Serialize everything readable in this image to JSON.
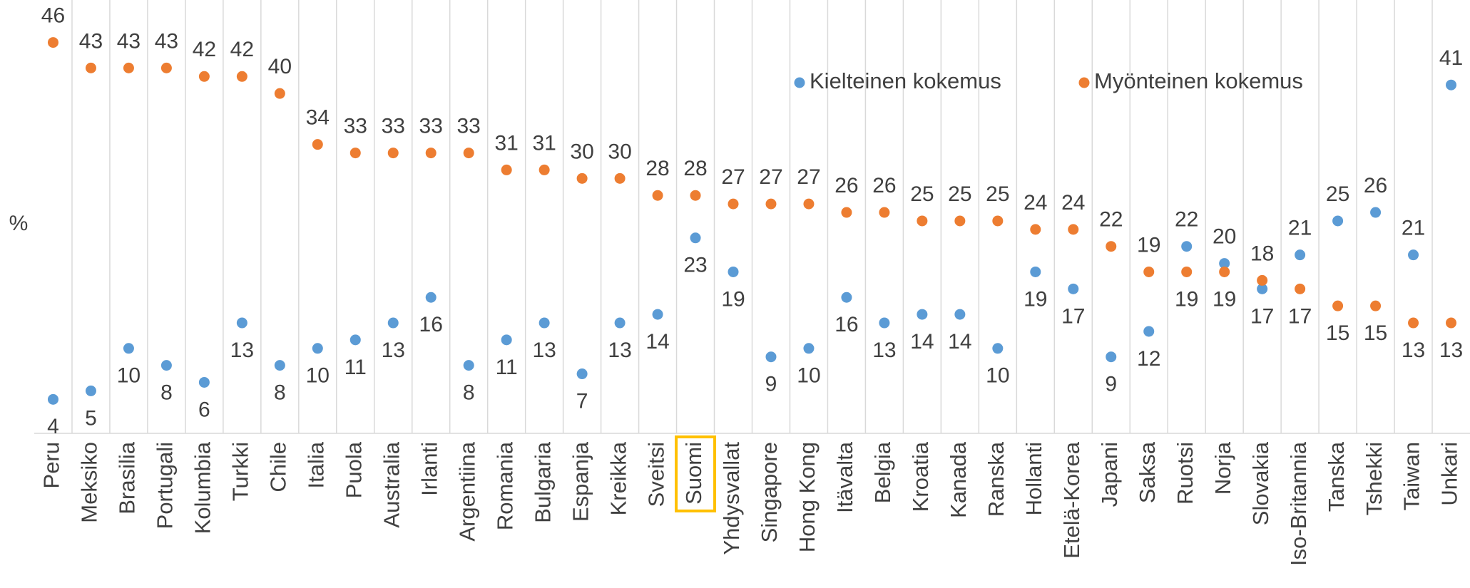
{
  "chart_data": {
    "type": "dot",
    "y_label": "%",
    "categories": [
      "Peru",
      "Meksiko",
      "Brasilia",
      "Portugali",
      "Kolumbia",
      "Turkki",
      "Chile",
      "Italia",
      "Puola",
      "Australia",
      "Irlanti",
      "Argentiina",
      "Romania",
      "Bulgaria",
      "Espanja",
      "Kreikka",
      "Sveitsi",
      "Suomi",
      "Yhdysvallat",
      "Singapore",
      "Hong Kong",
      "Itävalta",
      "Belgia",
      "Kroatia",
      "Kanada",
      "Ranska",
      "Hollanti",
      "Etelä-Korea",
      "Japani",
      "Saksa",
      "Ruotsi",
      "Norja",
      "Slovakia",
      "Iso-Britannia",
      "Tanska",
      "Tshekki",
      "Taiwan",
      "Unkari"
    ],
    "series": [
      {
        "name": "Kielteinen kokemus",
        "color": "#5b9bd5",
        "values": [
          4,
          5,
          10,
          8,
          6,
          13,
          8,
          10,
          11,
          13,
          16,
          8,
          11,
          13,
          7,
          13,
          14,
          23,
          19,
          9,
          10,
          16,
          13,
          14,
          14,
          10,
          19,
          17,
          9,
          12,
          22,
          20,
          17,
          21,
          25,
          26,
          21,
          41
        ]
      },
      {
        "name": "Myönteinen kokemus",
        "color": "#ed7d31",
        "values": [
          46,
          43,
          43,
          43,
          42,
          42,
          40,
          34,
          33,
          33,
          33,
          33,
          31,
          31,
          30,
          30,
          28,
          28,
          27,
          27,
          27,
          26,
          26,
          25,
          25,
          25,
          24,
          24,
          22,
          19,
          19,
          19,
          18,
          17,
          15,
          15,
          13,
          13
        ]
      }
    ],
    "ylim": [
      0,
      51
    ],
    "highlight": "Suomi",
    "highlight_color": "#ffc000",
    "grid": true,
    "legend": "top-right"
  }
}
